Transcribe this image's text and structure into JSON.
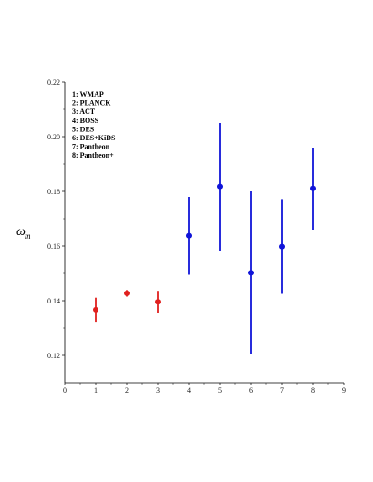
{
  "chart_data": {
    "type": "scatter",
    "title": "",
    "xlabel": "",
    "ylabel": "ω",
    "ylabel_subscript": "m",
    "xlim": [
      0,
      9
    ],
    "ylim": [
      0.11,
      0.22
    ],
    "xticks": [
      0,
      1,
      2,
      3,
      4,
      5,
      6,
      7,
      8,
      9
    ],
    "yticks": [
      0.12,
      0.14,
      0.16,
      0.18,
      0.2,
      0.22
    ],
    "ytick_labels": [
      "0.12",
      "0.14",
      "0.16",
      "0.18",
      "0.20",
      "0.22"
    ],
    "grid": false,
    "legend_position": "top-left",
    "legend": [
      "1: WMAP",
      "2: PLANCK",
      "3: ACT",
      "4: BOSS",
      "5: DES",
      "6: DES+KiDS",
      "7: Pantheon",
      "8: Pantheon+"
    ],
    "series": [
      {
        "color": "#e0201e",
        "points": [
          {
            "x": 1,
            "y": 0.1367,
            "ylow": 0.1323,
            "yhigh": 0.1411
          },
          {
            "x": 2,
            "y": 0.1427,
            "ylow": 0.1415,
            "yhigh": 0.1439
          },
          {
            "x": 3,
            "y": 0.1396,
            "ylow": 0.1356,
            "yhigh": 0.1436
          }
        ]
      },
      {
        "color": "#1014d8",
        "points": [
          {
            "x": 4,
            "y": 0.1638,
            "ylow": 0.1495,
            "yhigh": 0.178
          },
          {
            "x": 5,
            "y": 0.1818,
            "ylow": 0.158,
            "yhigh": 0.205
          },
          {
            "x": 6,
            "y": 0.1502,
            "ylow": 0.1205,
            "yhigh": 0.18
          },
          {
            "x": 7,
            "y": 0.1598,
            "ylow": 0.1425,
            "yhigh": 0.1772
          },
          {
            "x": 8,
            "y": 0.1811,
            "ylow": 0.166,
            "yhigh": 0.196
          }
        ]
      }
    ]
  }
}
